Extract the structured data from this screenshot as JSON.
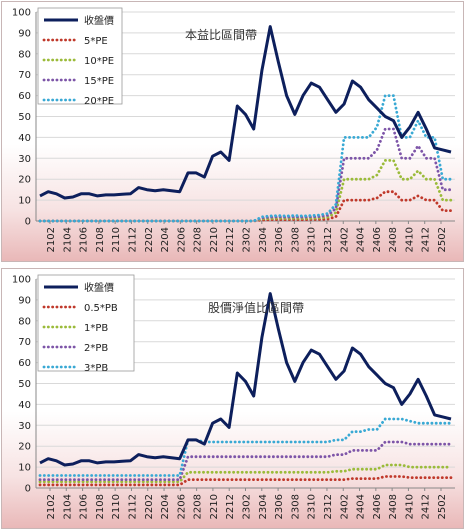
{
  "chart_data": [
    {
      "type": "line",
      "title": "本益比區間帶",
      "ylim": [
        0,
        100
      ],
      "yticks": [
        0,
        10,
        20,
        30,
        40,
        50,
        60,
        70,
        80,
        90,
        100
      ],
      "x_tick_labels": [
        "2102",
        "2104",
        "2106",
        "2108",
        "2110",
        "2112",
        "2202",
        "2204",
        "2206",
        "2208",
        "2210",
        "2212",
        "2302",
        "2304",
        "2306",
        "2308",
        "2310",
        "2312",
        "2402",
        "2404",
        "2406",
        "2408",
        "2410",
        "2412",
        "2502"
      ],
      "grid": "horizontal",
      "legend": "top-left",
      "series": [
        {
          "name": "收盤價",
          "color": "#0d1f5c",
          "style": "solid",
          "values": [
            12,
            14,
            13,
            11,
            11.5,
            13,
            13,
            12,
            12.5,
            12.5,
            12.8,
            13,
            16,
            15,
            14.5,
            15,
            14.5,
            14,
            23,
            23,
            21,
            31,
            33,
            29,
            55,
            51,
            44,
            72,
            93,
            76,
            60,
            51,
            60,
            66,
            64,
            58,
            52,
            56,
            67,
            64,
            58,
            54,
            50,
            48,
            40,
            45,
            52,
            44,
            35,
            34,
            33
          ]
        },
        {
          "name": "5*PE",
          "color": "#c0392b",
          "style": "dotted",
          "values": [
            0,
            0,
            0,
            0,
            0,
            0,
            0,
            0,
            0,
            0,
            0,
            0,
            0,
            0,
            0,
            0,
            0,
            0,
            0,
            0,
            0,
            0,
            0,
            0,
            0,
            0,
            0,
            0.5,
            0.6,
            0.7,
            0.6,
            0.7,
            0.6,
            0.7,
            0.7,
            0.9,
            2,
            10,
            10,
            10,
            10,
            11,
            14,
            14,
            10,
            10,
            12,
            10,
            10,
            5,
            5
          ]
        },
        {
          "name": "10*PE",
          "color": "#9bbb3a",
          "style": "dotted",
          "values": [
            0,
            0,
            0,
            0,
            0,
            0,
            0,
            0,
            0,
            0,
            0,
            0,
            0,
            0,
            0,
            0,
            0,
            0,
            0,
            0,
            0,
            0,
            0,
            0,
            0,
            0,
            0,
            1,
            1.2,
            1.3,
            1.2,
            1.3,
            1.2,
            1.3,
            1.4,
            1.8,
            4,
            20,
            20,
            20,
            20,
            22,
            29,
            29,
            20,
            20,
            24,
            20,
            20,
            10,
            10
          ]
        },
        {
          "name": "15*PE",
          "color": "#7d55a8",
          "style": "dotted",
          "values": [
            0,
            0,
            0,
            0,
            0,
            0,
            0,
            0,
            0,
            0,
            0,
            0,
            0,
            0,
            0,
            0,
            0,
            0,
            0,
            0,
            0,
            0,
            0,
            0,
            0,
            0,
            0,
            1.5,
            1.8,
            2,
            1.8,
            2,
            1.8,
            2,
            2.1,
            2.7,
            6,
            30,
            30,
            30,
            30,
            34,
            44,
            44,
            30,
            30,
            36,
            30,
            30,
            15,
            15
          ]
        },
        {
          "name": "20*PE",
          "color": "#39a9d4",
          "style": "dotted",
          "values": [
            0,
            0,
            0,
            0,
            0,
            0,
            0,
            0,
            0,
            0,
            0,
            0,
            0,
            0,
            0,
            0,
            0,
            0,
            0,
            0,
            0,
            0,
            0,
            0,
            0,
            0,
            0,
            2,
            2.4,
            2.6,
            2.4,
            2.6,
            2.4,
            2.6,
            2.8,
            3.6,
            8,
            40,
            40,
            40,
            40,
            45,
            60,
            60,
            40,
            40,
            48,
            40,
            40,
            20,
            20
          ]
        }
      ]
    },
    {
      "type": "line",
      "title": "股價淨值比區間帶",
      "ylim": [
        0,
        100
      ],
      "yticks": [
        0,
        10,
        20,
        30,
        40,
        50,
        60,
        70,
        80,
        90,
        100
      ],
      "x_tick_labels": [
        "2102",
        "2104",
        "2106",
        "2108",
        "2110",
        "2112",
        "2202",
        "2204",
        "2206",
        "2208",
        "2210",
        "2212",
        "2302",
        "2304",
        "2306",
        "2308",
        "2310",
        "2312",
        "2402",
        "2404",
        "2406",
        "2408",
        "2410",
        "2412",
        "2502"
      ],
      "grid": "horizontal",
      "legend": "top-left",
      "series": [
        {
          "name": "收盤價",
          "color": "#0d1f5c",
          "style": "solid",
          "values": [
            12,
            14,
            13,
            11,
            11.5,
            13,
            13,
            12,
            12.5,
            12.5,
            12.8,
            13,
            16,
            15,
            14.5,
            15,
            14.5,
            14,
            23,
            23,
            21,
            31,
            33,
            29,
            55,
            51,
            44,
            72,
            93,
            76,
            60,
            51,
            60,
            66,
            64,
            58,
            52,
            56,
            67,
            64,
            58,
            54,
            50,
            48,
            40,
            45,
            52,
            44,
            35,
            34,
            33
          ]
        },
        {
          "name": "0.5*PB",
          "color": "#c0392b",
          "style": "dotted",
          "values": [
            1.5,
            1.5,
            1.5,
            1.5,
            1.5,
            1.5,
            1.5,
            1.5,
            1.5,
            1.5,
            1.5,
            1.5,
            1.5,
            1.5,
            1.5,
            1.5,
            1.5,
            1.5,
            4,
            4,
            4,
            4,
            4,
            4,
            4,
            4,
            4,
            4,
            4,
            4,
            4,
            4,
            4,
            4,
            4,
            4,
            4,
            4,
            4.5,
            4.5,
            4.5,
            4.5,
            5.5,
            5.5,
            5.5,
            5,
            5,
            5,
            5,
            5,
            5
          ]
        },
        {
          "name": "1*PB",
          "color": "#9bbb3a",
          "style": "dotted",
          "values": [
            3,
            3,
            3,
            3,
            3,
            3,
            3,
            3,
            3,
            3,
            3,
            3,
            3,
            3,
            3,
            3,
            3,
            3,
            7.5,
            7.5,
            7.5,
            7.5,
            7.5,
            7.5,
            7.5,
            7.5,
            7.5,
            7.5,
            7.5,
            7.5,
            7.5,
            7.5,
            7.5,
            7.5,
            7.5,
            7.5,
            8,
            8,
            9,
            9,
            9,
            9,
            11,
            11,
            11,
            10,
            10,
            10,
            10,
            10,
            10
          ]
        },
        {
          "name": "2*PB",
          "color": "#7d55a8",
          "style": "dotted",
          "values": [
            4,
            4,
            4,
            4,
            4,
            4,
            4,
            4,
            4,
            4,
            4,
            4,
            4,
            4,
            4,
            4,
            4,
            4,
            15,
            15,
            15,
            15,
            15,
            15,
            15,
            15,
            15,
            15,
            15,
            15,
            15,
            15,
            15,
            15,
            15,
            15,
            16,
            16,
            18,
            18,
            18,
            18,
            22,
            22,
            22,
            21,
            21,
            21,
            21,
            21,
            21
          ]
        },
        {
          "name": "3*PB",
          "color": "#39a9d4",
          "style": "dotted",
          "values": [
            6,
            6,
            6,
            6,
            6,
            6,
            6,
            6,
            6,
            6,
            6,
            6,
            6,
            6,
            6,
            6,
            6,
            6,
            23,
            23,
            22,
            22,
            22,
            22,
            22,
            22,
            22,
            22,
            22,
            22,
            22,
            22,
            22,
            22,
            22,
            22,
            23,
            23,
            27,
            27,
            28,
            28,
            33,
            33,
            33,
            32,
            31,
            31,
            31,
            31,
            31
          ]
        }
      ]
    }
  ]
}
